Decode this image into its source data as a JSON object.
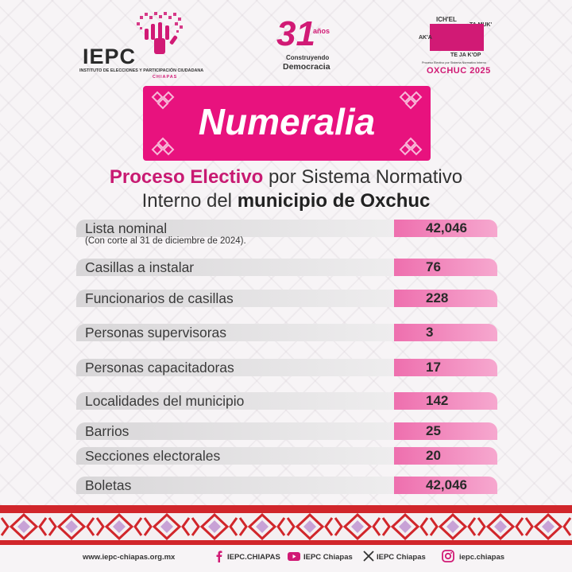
{
  "header": {
    "iepc_brand": "IEPC",
    "iepc_subtitle": "INSTITUTO DE ELECCIONES Y PARTICIPACIÓN CIUDADANA",
    "iepc_state": "CHIAPAS",
    "anniv_number": "31",
    "anniv_years": "años",
    "anniv_line1": "Construyendo",
    "anniv_line2": "Democracia",
    "oxchuc_top": "ICH'EL",
    "oxchuc_left": "AK'A",
    "oxchuc_right": "TA MUK'",
    "oxchuc_bottom": "TE JA K'OP",
    "oxchuc_small": "Proceso Electivo por Sistema Normativo Interno",
    "oxchuc_year": "OXCHUC 2025"
  },
  "banner": {
    "title": "Numeralia"
  },
  "heading": {
    "pink": "Proceso Electivo",
    "line1_rest": " por Sistema Normativo",
    "line2_start": "Interno del ",
    "line2_bold": "municipio de Oxchuc"
  },
  "rows": [
    {
      "label": "Lista nominal",
      "value": "42,046",
      "note": "(Con corte al 31 de diciembre de 2024)."
    },
    {
      "label": "Casillas a instalar",
      "value": "76"
    },
    {
      "label": "Funcionarios de casillas",
      "value": "228"
    },
    {
      "label": "Personas supervisoras",
      "value": "3"
    },
    {
      "label": "Personas capacitadoras",
      "value": "17"
    },
    {
      "label": "Localidades del municipio",
      "value": "142"
    },
    {
      "label": "Barrios",
      "value": "25"
    },
    {
      "label": "Secciones electorales",
      "value": "20"
    },
    {
      "label": "Boletas",
      "value": "42,046"
    }
  ],
  "footer": {
    "website": "www.iepc-chiapas.org.mx",
    "facebook": "IEPC.CHIAPAS",
    "youtube": "IEPC Chiapas",
    "x": "IEPC Chiapas",
    "instagram": "iepc.chiapas"
  },
  "colors": {
    "accent": "#e8127e",
    "value_bar": "#f193c2",
    "stripe": "#d1262b"
  },
  "icons": [
    "hand-tree-logo",
    "diamond-ornament",
    "facebook-icon",
    "youtube-icon",
    "x-icon",
    "instagram-icon"
  ]
}
